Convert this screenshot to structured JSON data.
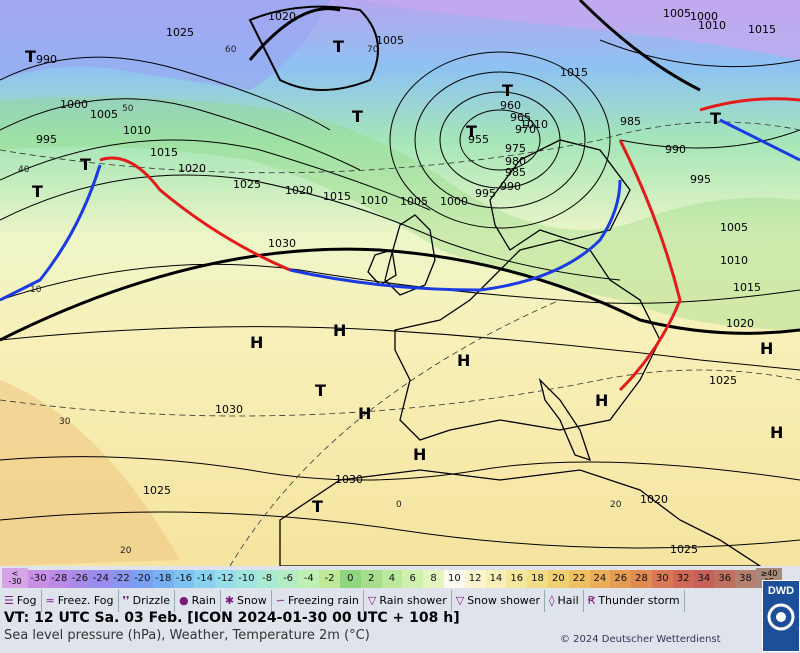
{
  "pressure_labels": [
    "1020",
    "1025",
    "1005",
    "1015",
    "1010",
    "990",
    "1000",
    "1005",
    "1010",
    "995",
    "1015",
    "1020",
    "1025",
    "1020",
    "1030",
    "1015",
    "1010",
    "1005",
    "1000",
    "995",
    "990",
    "985",
    "980",
    "975",
    "970",
    "965",
    "960",
    "955",
    "1000",
    "995",
    "990",
    "985",
    "1010",
    "1005",
    "1015",
    "1020",
    "1025",
    "1030",
    "1025",
    "1030",
    "1025",
    "1020",
    "1005",
    "1010",
    "1015"
  ],
  "highs": [
    "H",
    "H",
    "H",
    "H",
    "H",
    "H",
    "H",
    "H"
  ],
  "lows": [
    "T",
    "T",
    "T",
    "T",
    "T",
    "T",
    "T",
    "T",
    "T",
    "T"
  ],
  "temp_labels": [
    "60",
    "70",
    "50",
    "40",
    "30",
    "20",
    "10",
    "0",
    "20"
  ],
  "legend": {
    "scale_low": [
      "<",
      "-30"
    ],
    "scale_high": [
      "≥40",
      "°C"
    ],
    "scale_values": [
      "-30",
      "-28",
      "-26",
      "-24",
      "-22",
      "-20",
      "-18",
      "-16",
      "-14",
      "-12",
      "-10",
      "-8",
      "-6",
      "-4",
      "-2",
      "0",
      "2",
      "4",
      "6",
      "8",
      "10",
      "12",
      "14",
      "16",
      "18",
      "20",
      "22",
      "24",
      "26",
      "28",
      "30",
      "32",
      "34",
      "36",
      "38"
    ],
    "scale_colors": [
      "#c88fe4",
      "#b98ae6",
      "#a88ae8",
      "#9a8cee",
      "#8a95f0",
      "#7aa0f2",
      "#78b0f4",
      "#7ec2f4",
      "#88d2f0",
      "#96dcea",
      "#a0e4e0",
      "#a8ead2",
      "#b4ecc4",
      "#bff0b4",
      "#bfe898",
      "#8fd67e",
      "#a6de8e",
      "#bce89e",
      "#d0f0ae",
      "#e4f6c0",
      "#fbfbf0",
      "#fbf6cf",
      "#f8f0b8",
      "#f6e69e",
      "#f3de88",
      "#f0d070",
      "#eec062",
      "#eaae58",
      "#e49c54",
      "#de8a52",
      "#d87854",
      "#d06858",
      "#c8605a",
      "#bf7060",
      "#b48070"
    ],
    "symbols": [
      {
        "glyph": "☰",
        "label": "Fog"
      },
      {
        "glyph": "≈",
        "label": "Freez. Fog"
      },
      {
        "glyph": "❜❜",
        "label": "Drizzle"
      },
      {
        "glyph": "●",
        "label": "Rain"
      },
      {
        "glyph": "✱",
        "label": "Snow"
      },
      {
        "glyph": "∽",
        "label": "Freezing rain"
      },
      {
        "glyph": "▽",
        "label": "Rain shower"
      },
      {
        "glyph": "▽",
        "label": "Snow shower"
      },
      {
        "glyph": "◊",
        "label": "Hail"
      },
      {
        "glyph": "Ꞧ",
        "label": "Thunder storm"
      }
    ],
    "vt": "VT: 12 UTC Sa.  03 Feb. [ICON 2024-01-30  00 UTC + 108 h]",
    "description": "Sea level pressure (hPa), Weather, Temperature 2m (°C)",
    "copyright": "© 2024 Deutscher Wetterdienst",
    "logo": "DWD"
  }
}
